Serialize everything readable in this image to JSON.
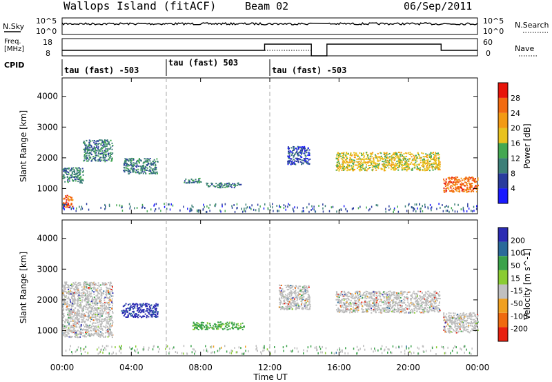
{
  "header": {
    "title": "Wallops Island (fitACF)",
    "beam": "Beam 02",
    "date": "06/Sep/2011"
  },
  "status_labels": {
    "nsky": "N.Sky",
    "nsearch": "N.Search",
    "freq_line1": "Freq.",
    "freq_line2": "[MHz]",
    "nave": "Nave",
    "cpid": "CPID",
    "nsky_ticks": [
      "10^5",
      "10^0"
    ],
    "nsearch_ticks": [
      "10^5",
      "10^0"
    ],
    "freq_ticks": [
      "18",
      "8"
    ],
    "nave_ticks": [
      "60",
      "0"
    ]
  },
  "cpid_segments": [
    {
      "label": "tau (fast) -503"
    },
    {
      "label": "tau (fast) 503"
    },
    {
      "label": "tau (fast) -503"
    }
  ],
  "colors": {
    "power_scale": [
      "#1a1aff",
      "#2a3c9e",
      "#3c7f78",
      "#44a852",
      "#e8c21f",
      "#f39a13",
      "#f26a10",
      "#e8140a"
    ],
    "velocity_scale": [
      "#2b2bb3",
      "#2a6a9a",
      "#3aa24a",
      "#8acc33",
      "#c0c0c0",
      "#f0a020",
      "#ef6a10",
      "#e82010"
    ],
    "ground_scatter": "#bcbcbc"
  },
  "chart_data": [
    {
      "type": "heatmap",
      "name": "power",
      "xlabel": "",
      "ylabel": "Slant Range [km]",
      "y_ticks": [
        "1000",
        "2000",
        "3000",
        "4000"
      ],
      "x_ticks": [
        "00:00",
        "04:00",
        "08:00",
        "12:00",
        "16:00",
        "20:00",
        "00:00"
      ],
      "xlim_hours": [
        0,
        24
      ],
      "ylim_km": [
        180,
        4600
      ],
      "colorbar_label": "Power [dB]",
      "colorbar_ticks": [
        "28",
        "24",
        "20",
        "16",
        "12",
        "8",
        "4"
      ],
      "scatter_bands": [
        {
          "t": [
            0.0,
            1.2
          ],
          "range_km": [
            1200,
            1700
          ],
          "power_db": 12
        },
        {
          "t": [
            1.2,
            2.9
          ],
          "range_km": [
            1900,
            2600
          ],
          "power_db": 10
        },
        {
          "t": [
            0.0,
            0.6
          ],
          "range_km": [
            400,
            800
          ],
          "power_db": 26
        },
        {
          "t": [
            3.5,
            5.5
          ],
          "range_km": [
            1500,
            2000
          ],
          "power_db": 10
        },
        {
          "t": [
            7.0,
            8.0
          ],
          "range_km": [
            1200,
            1350
          ],
          "power_db": 12
        },
        {
          "t": [
            8.3,
            10.3
          ],
          "range_km": [
            1050,
            1200
          ],
          "power_db": 12
        },
        {
          "t": [
            13.0,
            14.3
          ],
          "range_km": [
            1800,
            2400
          ],
          "power_db": 8
        },
        {
          "t": [
            15.8,
            21.8
          ],
          "range_km": [
            1600,
            2200
          ],
          "power_db": 18
        },
        {
          "t": [
            22.0,
            24.0
          ],
          "range_km": [
            900,
            1400
          ],
          "power_db": 26
        }
      ]
    },
    {
      "type": "heatmap",
      "name": "velocity",
      "xlabel": "Time UT",
      "ylabel": "Slant Range [km]",
      "y_ticks": [
        "1000",
        "2000",
        "3000",
        "4000"
      ],
      "x_ticks": [
        "00:00",
        "04:00",
        "08:00",
        "12:00",
        "16:00",
        "20:00",
        "00:00"
      ],
      "xlim_hours": [
        0,
        24
      ],
      "ylim_km": [
        180,
        4600
      ],
      "colorbar_label": "Velocity [m s^-1]",
      "colorbar_ticks": [
        "200",
        "100",
        "50",
        "15",
        "-15",
        "-50",
        "-100",
        "-200"
      ],
      "scatter_bands": [
        {
          "t": [
            0.0,
            2.9
          ],
          "range_km": [
            800,
            2600
          ],
          "velocity": 0,
          "ground": true
        },
        {
          "t": [
            3.4,
            5.5
          ],
          "range_km": [
            1450,
            1900
          ],
          "velocity": 200
        },
        {
          "t": [
            7.5,
            10.5
          ],
          "range_km": [
            1050,
            1300
          ],
          "velocity": 50
        },
        {
          "t": [
            12.5,
            14.3
          ],
          "range_km": [
            1700,
            2500
          ],
          "velocity": 0,
          "ground": true
        },
        {
          "t": [
            15.8,
            21.8
          ],
          "range_km": [
            1600,
            2300
          ],
          "velocity": 0,
          "ground": true
        },
        {
          "t": [
            22.0,
            24.0
          ],
          "range_km": [
            950,
            1600
          ],
          "velocity": 0,
          "ground": true
        }
      ]
    }
  ]
}
